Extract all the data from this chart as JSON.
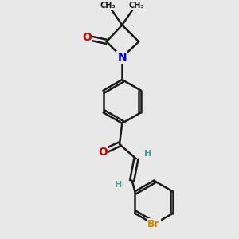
{
  "background_color": "#e8e8e8",
  "atom_colors": {
    "C": "#1a1a1a",
    "H": "#4a9a9a",
    "N": "#0000cc",
    "O": "#cc0000",
    "Br": "#cc8800"
  },
  "bond_color": "#1a1a1a",
  "bond_width": 1.8,
  "font_size_atom": 10,
  "title": ""
}
